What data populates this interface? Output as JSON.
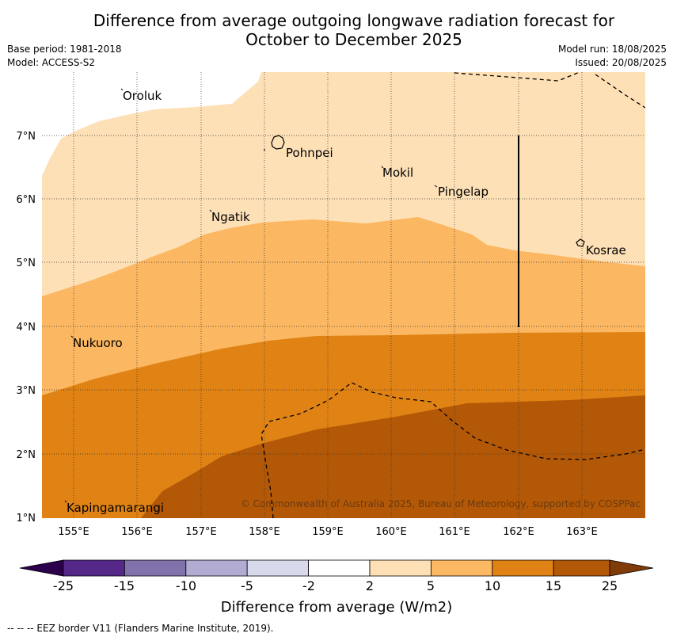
{
  "title_line1": "Difference from average outgoing longwave radiation forecast for",
  "title_line2": "October to December 2025",
  "meta": {
    "base_period": "Base period: 1981-2018",
    "model": "Model: ACCESS-S2",
    "model_run": "Model run: 18/08/2025",
    "issued": "Issued: 20/08/2025"
  },
  "map": {
    "lon_ticks": [
      "155°E",
      "156°E",
      "157°E",
      "158°E",
      "159°E",
      "160°E",
      "161°E",
      "162°E",
      "163°E"
    ],
    "lat_ticks": [
      "7°N",
      "6°N",
      "5°N",
      "4°N",
      "3°N",
      "2°N",
      "1°N"
    ],
    "places": [
      "Oroluk",
      "Pohnpei",
      "Mokil",
      "Pingelap",
      "Ngatik",
      "Kosrae",
      "Nukuoro",
      "Kapingamarangi"
    ],
    "copyright": "© Commonwealth of Australia 2025, Bureau of Meteorology, supported by COSPPac",
    "colors": {
      "band_2_5": "#fde0b6",
      "band_5_10": "#fbb761",
      "band_10_15": "#e08214",
      "band_15_25": "#b35806"
    }
  },
  "colorbar": {
    "labels": [
      "-25",
      "-15",
      "-10",
      "-5",
      "-2",
      "2",
      "5",
      "10",
      "15",
      "25"
    ],
    "colors": [
      "#2d004b",
      "#542788",
      "#8073ac",
      "#b2abd2",
      "#d8daeb",
      "#ffffff",
      "#fee0b6",
      "#fdb863",
      "#e08214",
      "#b35806",
      "#7f3b08"
    ],
    "title": "Difference from average (W/m2)"
  },
  "footer": "--  --  -- EEZ border V11 (Flanders Marine Institute, 2019)."
}
